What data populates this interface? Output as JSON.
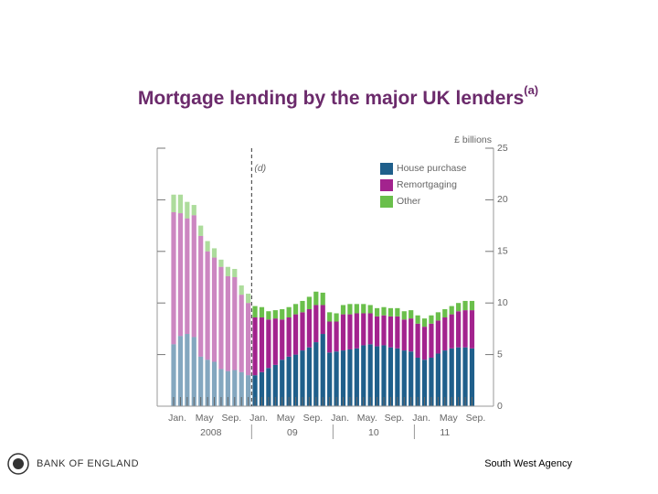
{
  "chart_data": {
    "type": "stacked_bar",
    "title": "Mortgage lending by the major UK lenders",
    "title_note": "(a)",
    "y_label": "£ billions",
    "categories": [
      "Jan.",
      null,
      null,
      null,
      "May",
      null,
      null,
      null,
      "Sep.",
      null,
      null,
      null,
      "Jan.",
      null,
      null,
      null,
      "May",
      null,
      null,
      null,
      "Sep.",
      null,
      null,
      null,
      "Jan.",
      null,
      null,
      null,
      "May.",
      null,
      null,
      null,
      "Sep.",
      null,
      null,
      null,
      "Jan.",
      null,
      null,
      null,
      "May",
      null,
      null,
      null,
      "Sep."
    ],
    "groups": [
      {
        "label": "2008",
        "span": 12
      },
      {
        "label": "09",
        "span": 12
      },
      {
        "label": "10",
        "span": 12
      },
      {
        "label": "11",
        "span": 9
      }
    ],
    "series": [
      {
        "name": "House purchase",
        "color": "#1f5f8b",
        "values": [
          6.0,
          6.8,
          7.0,
          6.7,
          4.8,
          4.5,
          4.3,
          3.6,
          3.4,
          3.5,
          3.3,
          3.0,
          3.0,
          3.3,
          3.7,
          4.0,
          4.5,
          4.8,
          5.0,
          5.4,
          5.7,
          6.2,
          7.0,
          5.2,
          5.3,
          5.4,
          5.5,
          5.6,
          5.9,
          6.0,
          5.8,
          5.9,
          5.7,
          5.6,
          5.4,
          5.3,
          4.7,
          4.5,
          4.7,
          5.1,
          5.4,
          5.6,
          5.7,
          5.7,
          5.6
        ]
      },
      {
        "name": "Remortgaging",
        "color": "#a3238e",
        "values": [
          12.8,
          11.9,
          11.2,
          11.8,
          11.7,
          10.5,
          10.1,
          9.9,
          9.2,
          9.0,
          7.5,
          7.0,
          5.6,
          5.3,
          4.7,
          4.5,
          3.9,
          3.8,
          3.9,
          3.7,
          3.7,
          3.6,
          2.8,
          3.0,
          2.9,
          3.5,
          3.4,
          3.4,
          3.1,
          3.0,
          2.9,
          2.9,
          3.0,
          3.1,
          3.0,
          3.2,
          3.3,
          3.2,
          3.3,
          3.2,
          3.2,
          3.3,
          3.5,
          3.6,
          3.7
        ]
      },
      {
        "name": "Other",
        "color": "#6abf4b",
        "values": [
          1.7,
          1.8,
          1.6,
          1.0,
          1.0,
          1.0,
          0.9,
          0.7,
          0.9,
          0.8,
          0.9,
          0.9,
          1.1,
          1.0,
          0.8,
          0.8,
          1.0,
          1.0,
          1.0,
          1.1,
          1.2,
          1.3,
          1.2,
          0.9,
          0.8,
          0.9,
          1.0,
          0.9,
          0.9,
          0.8,
          0.8,
          0.8,
          0.8,
          0.8,
          0.8,
          0.8,
          0.8,
          0.8,
          0.8,
          0.8,
          0.8,
          0.8,
          0.8,
          0.9,
          0.9
        ]
      }
    ],
    "marker": {
      "label": "(d)",
      "index": 12
    },
    "ylim": [
      0,
      25
    ],
    "yticks": [
      0,
      5,
      10,
      15,
      20,
      25
    ],
    "legend": "top-right"
  },
  "footer": {
    "logo": "BANK OF ENGLAND",
    "agency": "South West Agency"
  }
}
